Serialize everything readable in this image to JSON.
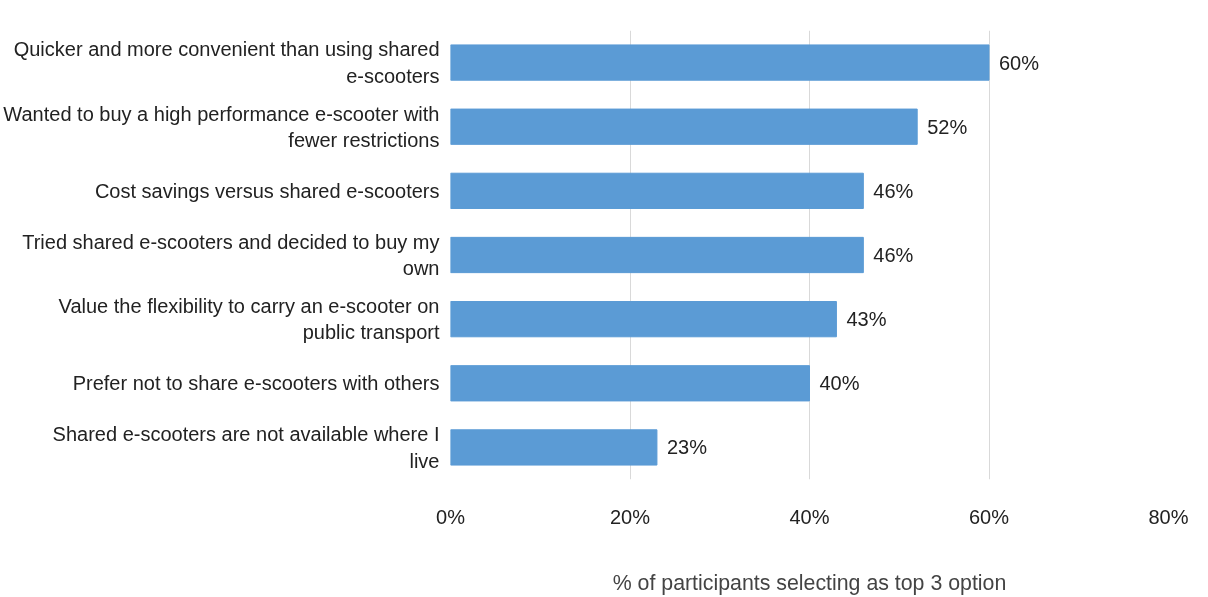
{
  "chart_data": {
    "type": "bar",
    "orientation": "horizontal",
    "xlabel": "% of participants selecting as top 3 option",
    "categories": [
      "Quicker and more convenient than using shared e-scooters",
      "Wanted to buy a high performance e-scooter with fewer restrictions",
      "Cost savings versus shared e-scooters",
      "Tried shared e-scooters and decided to buy my own",
      "Value the flexibility to carry an e-scooter on public transport",
      "Prefer not to share e-scooters with others",
      "Shared e-scooters are not available where I live"
    ],
    "values": [
      60,
      52,
      46,
      46,
      43,
      40,
      23
    ],
    "value_labels": [
      "60%",
      "52%",
      "46%",
      "46%",
      "43%",
      "40%",
      "23%"
    ],
    "color": "#5b9bd5",
    "xlim": [
      0,
      80
    ],
    "xticks": [
      {
        "value": 0,
        "label": "0%"
      },
      {
        "value": 20,
        "label": "20%"
      },
      {
        "value": 40,
        "label": "40%"
      },
      {
        "value": 60,
        "label": "60%"
      },
      {
        "value": 80,
        "label": "80%"
      }
    ],
    "grid": "x"
  }
}
